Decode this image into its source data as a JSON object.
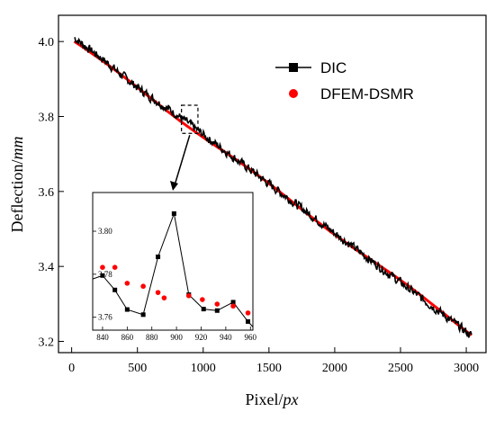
{
  "chart_data": {
    "type": "line",
    "xlabel": {
      "main": "Pixel/",
      "unit": "px"
    },
    "ylabel": {
      "main": "Deflection/",
      "unit": "mm"
    },
    "xlim": [
      -100,
      3150
    ],
    "ylim": [
      3.17,
      4.07
    ],
    "xticks": [
      0,
      500,
      1000,
      1500,
      2000,
      2500,
      3000
    ],
    "yticks": [
      3.2,
      3.4,
      3.6,
      3.8,
      4.0
    ],
    "ytick_labels": [
      "3.2",
      "3.4",
      "3.6",
      "3.8",
      "4.0"
    ],
    "grid": false,
    "legend_position": "top-right",
    "series": [
      {
        "name": "DIC",
        "color": "#000000",
        "marker": "square",
        "start": [
          20,
          4.01
        ],
        "end": [
          3040,
          3.215
        ],
        "noise": 0.013
      },
      {
        "name": "DFEM-DSMR",
        "color": "#ff0000",
        "marker": "circle",
        "start": [
          20,
          4.0
        ],
        "end": [
          3040,
          3.22
        ]
      }
    ],
    "zoom_box": {
      "x": [
        835,
        960
      ],
      "y": [
        3.755,
        3.83
      ]
    },
    "inset": {
      "xlim": [
        832,
        962
      ],
      "ylim": [
        3.754,
        3.818
      ],
      "xticks": [
        840,
        860,
        880,
        900,
        920,
        940,
        960
      ],
      "yticks": [
        3.76,
        3.78,
        3.8
      ],
      "ytick_labels": [
        "3.76",
        "3.78",
        "3.80"
      ],
      "dic": {
        "x": [
          832,
          840,
          850,
          860,
          873,
          885,
          898,
          910,
          922,
          933,
          946,
          958,
          962
        ],
        "y": [
          3.7778,
          3.7794,
          3.7727,
          3.7636,
          3.7612,
          3.7881,
          3.8082,
          3.7705,
          3.7638,
          3.7631,
          3.767,
          3.758,
          3.7555
        ]
      },
      "dfem": {
        "x": [
          840,
          850,
          860,
          873,
          885,
          890,
          910,
          921,
          933,
          946,
          958
        ],
        "y": [
          3.7832,
          3.7832,
          3.7758,
          3.7744,
          3.7715,
          3.769,
          3.77,
          3.7682,
          3.7661,
          3.7652,
          3.762
        ]
      }
    }
  }
}
